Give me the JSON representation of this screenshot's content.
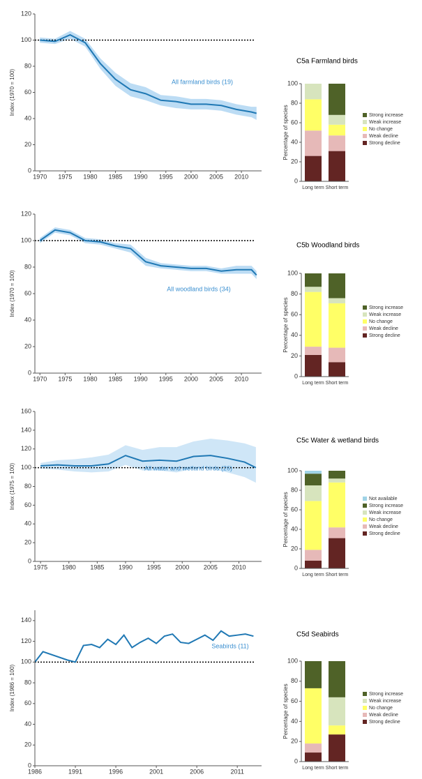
{
  "chart_data": [
    {
      "type": "line",
      "ylabel": "Index (1970 = 100)",
      "x": [
        1970,
        1973,
        1976,
        1979,
        1982,
        1985,
        1988,
        1991,
        1994,
        1997,
        2000,
        2003,
        2006,
        2009,
        2012,
        2013
      ],
      "series": [
        {
          "name": "All farmland birds (19)",
          "color": "#1f78b4",
          "values": [
            100,
            99,
            104,
            98,
            82,
            70,
            62,
            59,
            54,
            53,
            51,
            51,
            50,
            47,
            45,
            44
          ]
        }
      ],
      "band": {
        "color": "#bcdcf4",
        "lower": [
          98,
          97,
          101,
          95,
          78,
          65,
          57,
          54,
          50,
          48,
          47,
          47,
          46,
          43,
          41,
          39
        ],
        "upper": [
          102,
          101,
          107,
          101,
          86,
          75,
          67,
          64,
          58,
          57,
          55,
          55,
          54,
          51,
          49,
          49
        ]
      },
      "reference_line": 100,
      "xlim": [
        1969,
        2014
      ],
      "xticks": [
        1970,
        1975,
        1980,
        1985,
        1990,
        1995,
        2000,
        2005,
        2010
      ],
      "ylim": [
        0,
        120
      ],
      "yticks": [
        0,
        20,
        40,
        60,
        80,
        100,
        120
      ]
    },
    {
      "type": "stacked_bar",
      "title": "C5a Farmland birds",
      "ylabel": "Percentage of species",
      "categories": [
        "Long term",
        "Short term"
      ],
      "series": [
        {
          "name": "Strong decline",
          "color": "#632523",
          "values": [
            26,
            31
          ]
        },
        {
          "name": "Weak decline",
          "color": "#e6b9b8",
          "values": [
            26,
            16
          ]
        },
        {
          "name": "No change",
          "color": "#ffff66",
          "values": [
            32,
            11
          ]
        },
        {
          "name": "Weak increase",
          "color": "#d7e4bd",
          "values": [
            16,
            10
          ]
        },
        {
          "name": "Strong increase",
          "color": "#4f6228",
          "values": [
            0,
            32
          ]
        }
      ],
      "ylim": [
        0,
        100
      ],
      "yticks": [
        0,
        20,
        40,
        60,
        80,
        100
      ]
    },
    {
      "type": "line",
      "ylabel": "Index (1970 = 100)",
      "x": [
        1970,
        1973,
        1976,
        1979,
        1982,
        1985,
        1988,
        1991,
        1994,
        1997,
        2000,
        2003,
        2006,
        2009,
        2012,
        2013
      ],
      "series": [
        {
          "name": "All woodland birds (34)",
          "color": "#1f78b4",
          "values": [
            100,
            108,
            106,
            100,
            99,
            96,
            94,
            84,
            81,
            80,
            79,
            79,
            77,
            78,
            78,
            74
          ]
        }
      ],
      "band": {
        "color": "#bcdcf4",
        "lower": [
          98,
          106,
          104,
          98,
          97,
          94,
          91,
          81,
          79,
          78,
          77,
          77,
          75,
          75,
          75,
          71
        ],
        "upper": [
          102,
          110,
          108,
          102,
          101,
          98,
          97,
          87,
          83,
          82,
          81,
          81,
          79,
          81,
          81,
          77
        ]
      },
      "reference_line": 100,
      "xlim": [
        1969,
        2014
      ],
      "xticks": [
        1970,
        1975,
        1980,
        1985,
        1990,
        1995,
        2000,
        2005,
        2010
      ],
      "ylim": [
        0,
        120
      ],
      "yticks": [
        0,
        20,
        40,
        60,
        80,
        100,
        120
      ]
    },
    {
      "type": "stacked_bar",
      "title": "C5b Woodland birds",
      "ylabel": "Percentage of species",
      "categories": [
        "Long term",
        "Short term"
      ],
      "series": [
        {
          "name": "Strong decline",
          "color": "#632523",
          "values": [
            21,
            14
          ]
        },
        {
          "name": "Weak decline",
          "color": "#e6b9b8",
          "values": [
            8,
            14
          ]
        },
        {
          "name": "No change",
          "color": "#ffff66",
          "values": [
            53,
            43
          ]
        },
        {
          "name": "Weak increase",
          "color": "#d7e4bd",
          "values": [
            5,
            5
          ]
        },
        {
          "name": "Strong increase",
          "color": "#4f6228",
          "values": [
            13,
            24
          ]
        }
      ],
      "ylim": [
        0,
        100
      ],
      "yticks": [
        0,
        20,
        40,
        60,
        80,
        100
      ]
    },
    {
      "type": "line",
      "ylabel": "Index (1975 = 100)",
      "x": [
        1975,
        1978,
        1981,
        1984,
        1987,
        1990,
        1993,
        1996,
        1999,
        2002,
        2005,
        2008,
        2011,
        2013
      ],
      "series": [
        {
          "name": "All water and wetland birds (26)",
          "color": "#1f78b4",
          "values": [
            102,
            103,
            102,
            102,
            104,
            113,
            107,
            108,
            107,
            112,
            113,
            110,
            106,
            100
          ]
        }
      ],
      "band": {
        "color": "#cfe6f7",
        "lower": [
          99,
          98,
          96,
          95,
          96,
          103,
          97,
          97,
          95,
          99,
          99,
          95,
          90,
          84
        ],
        "upper": [
          105,
          108,
          109,
          111,
          114,
          124,
          119,
          122,
          122,
          128,
          131,
          129,
          126,
          122
        ]
      },
      "reference_line": 100,
      "xlim": [
        1974,
        2014
      ],
      "xticks": [
        1975,
        1980,
        1985,
        1990,
        1995,
        2000,
        2005,
        2010
      ],
      "ylim": [
        0,
        160
      ],
      "yticks": [
        0,
        20,
        40,
        60,
        80,
        100,
        120,
        140,
        160
      ]
    },
    {
      "type": "stacked_bar",
      "title": "C5c Water & wetland birds",
      "ylabel": "Percentage of species",
      "categories": [
        "Long term",
        "Short term"
      ],
      "series": [
        {
          "name": "Strong decline",
          "color": "#632523",
          "values": [
            8,
            31
          ]
        },
        {
          "name": "Weak decline",
          "color": "#e6b9b8",
          "values": [
            11,
            11
          ]
        },
        {
          "name": "No change",
          "color": "#ffff66",
          "values": [
            50,
            46
          ]
        },
        {
          "name": "Weak increase",
          "color": "#d7e4bd",
          "values": [
            16,
            4
          ]
        },
        {
          "name": "Strong increase",
          "color": "#4f6228",
          "values": [
            12,
            8
          ]
        },
        {
          "name": "Not available",
          "color": "#9fd3e6",
          "values": [
            3,
            0
          ]
        }
      ],
      "ylim": [
        0,
        100
      ],
      "yticks": [
        0,
        20,
        40,
        60,
        80,
        100
      ]
    },
    {
      "type": "line",
      "ylabel": "Index (1986 = 100)",
      "x": [
        1986,
        1987,
        1990,
        1991,
        1992,
        1993,
        1994,
        1995,
        1996,
        1997,
        1998,
        1999,
        2000,
        2001,
        2002,
        2003,
        2004,
        2005,
        2006,
        2007,
        2008,
        2009,
        2010,
        2011,
        2012,
        2013
      ],
      "series": [
        {
          "name": "Seabirds (11)",
          "color": "#1f78b4",
          "values": [
            100,
            110,
            102,
            100,
            116,
            117,
            114,
            122,
            117,
            126,
            114,
            119,
            123,
            118,
            125,
            127,
            119,
            118,
            122,
            126,
            121,
            130,
            125,
            126,
            127,
            125
          ]
        }
      ],
      "reference_line": 100,
      "xlim": [
        1986,
        2014
      ],
      "xticks": [
        1986,
        1991,
        1996,
        2001,
        2006,
        2011
      ],
      "ylim": [
        0,
        150
      ],
      "yticks": [
        0,
        20,
        40,
        60,
        80,
        100,
        120,
        140
      ]
    },
    {
      "type": "stacked_bar",
      "title": "C5d Seabirds",
      "ylabel": "Percentage of species",
      "categories": [
        "Long term",
        "Short term"
      ],
      "series": [
        {
          "name": "Strong decline",
          "color": "#632523",
          "values": [
            9,
            27
          ]
        },
        {
          "name": "Weak decline",
          "color": "#e6b9b8",
          "values": [
            9,
            0
          ]
        },
        {
          "name": "No change",
          "color": "#ffff66",
          "values": [
            55,
            9
          ]
        },
        {
          "name": "Weak increase",
          "color": "#d7e4bd",
          "values": [
            0,
            28
          ]
        },
        {
          "name": "Strong increase",
          "color": "#4f6228",
          "values": [
            27,
            36
          ]
        }
      ],
      "ylim": [
        0,
        100
      ],
      "yticks": [
        0,
        20,
        40,
        60,
        80,
        100
      ]
    }
  ]
}
